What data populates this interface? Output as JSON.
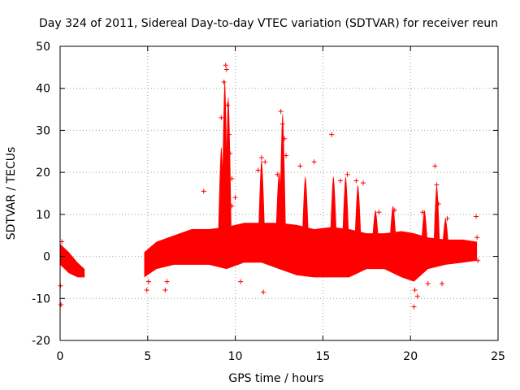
{
  "chart_data": {
    "type": "scatter",
    "title": "Day 324 of 2011, Sidereal Day-to-day VTEC variation (SDTVAR) for receiver reun",
    "xlabel": "GPS time / hours",
    "ylabel": "SDTVAR / TECUs",
    "xlim": [
      0,
      25
    ],
    "ylim": [
      -20,
      50
    ],
    "xticks": [
      0,
      5,
      10,
      15,
      20,
      25
    ],
    "xtick_labels": [
      "0",
      "5",
      "10",
      "15",
      "20",
      "25"
    ],
    "yticks": [
      -20,
      -10,
      0,
      10,
      20,
      30,
      40,
      50
    ],
    "ytick_labels": [
      "-20",
      "-10",
      "0",
      "10",
      "20",
      "30",
      "40",
      "50"
    ],
    "grid": true,
    "marker": "+",
    "series_color": "#ff0000",
    "series": [
      {
        "name": "SDTVAR",
        "envelope_x": [
          0.0,
          0.5,
          1.0,
          1.4,
          4.8,
          5.5,
          6.5,
          7.5,
          8.5,
          9.5,
          10.5,
          11.5,
          12.5,
          13.5,
          14.5,
          15.5,
          16.5,
          17.5,
          18.5,
          19.5,
          20.2,
          21.0,
          22.0,
          23.0,
          23.8
        ],
        "envelope_upper": [
          3.0,
          1.0,
          -1.5,
          -3.0,
          1.0,
          3.5,
          5.0,
          6.5,
          6.5,
          7.0,
          8.0,
          8.0,
          8.0,
          7.5,
          6.5,
          7.0,
          6.5,
          5.5,
          5.5,
          6.0,
          5.5,
          4.5,
          4.0,
          4.0,
          3.5
        ],
        "envelope_lower": [
          -2.0,
          -4.0,
          -5.0,
          -5.0,
          -5.0,
          -3.0,
          -2.0,
          -2.0,
          -2.0,
          -3.0,
          -1.5,
          -1.5,
          -3.0,
          -4.5,
          -5.0,
          -5.0,
          -5.0,
          -3.0,
          -3.0,
          -5.0,
          -6.0,
          -3.0,
          -2.0,
          -1.5,
          -1.0
        ],
        "spikes": [
          {
            "x": 9.2,
            "y": 26
          },
          {
            "x": 9.4,
            "y": 42
          },
          {
            "x": 9.6,
            "y": 38
          },
          {
            "x": 11.5,
            "y": 23
          },
          {
            "x": 12.5,
            "y": 20
          },
          {
            "x": 12.7,
            "y": 34
          },
          {
            "x": 14.0,
            "y": 19
          },
          {
            "x": 15.6,
            "y": 19
          },
          {
            "x": 16.3,
            "y": 19
          },
          {
            "x": 17.0,
            "y": 17
          },
          {
            "x": 18.0,
            "y": 11
          },
          {
            "x": 19.0,
            "y": 12
          },
          {
            "x": 20.8,
            "y": 11
          },
          {
            "x": 21.5,
            "y": 17
          },
          {
            "x": 22.0,
            "y": 9
          }
        ],
        "points": [
          {
            "x": 9.45,
            "y": 45.5
          },
          {
            "x": 9.5,
            "y": 44.5
          },
          {
            "x": 9.35,
            "y": 41.5
          },
          {
            "x": 9.2,
            "y": 33
          },
          {
            "x": 9.55,
            "y": 36
          },
          {
            "x": 9.65,
            "y": 29
          },
          {
            "x": 9.7,
            "y": 24.5
          },
          {
            "x": 9.8,
            "y": 18.5
          },
          {
            "x": 9.8,
            "y": 12.0
          },
          {
            "x": 10.0,
            "y": 14.0
          },
          {
            "x": 8.2,
            "y": 15.5
          },
          {
            "x": 12.6,
            "y": 34.5
          },
          {
            "x": 12.7,
            "y": 31.5
          },
          {
            "x": 12.8,
            "y": 28.0
          },
          {
            "x": 12.9,
            "y": 24.0
          },
          {
            "x": 11.5,
            "y": 23.5
          },
          {
            "x": 11.7,
            "y": 22.5
          },
          {
            "x": 11.3,
            "y": 20.5
          },
          {
            "x": 12.4,
            "y": 19.5
          },
          {
            "x": 13.7,
            "y": 21.5
          },
          {
            "x": 14.5,
            "y": 22.5
          },
          {
            "x": 15.5,
            "y": 29.0
          },
          {
            "x": 16.0,
            "y": 18.0
          },
          {
            "x": 16.4,
            "y": 19.5
          },
          {
            "x": 16.9,
            "y": 18.0
          },
          {
            "x": 17.3,
            "y": 17.5
          },
          {
            "x": 18.2,
            "y": 10.5
          },
          {
            "x": 19.1,
            "y": 11.0
          },
          {
            "x": 20.7,
            "y": 10.5
          },
          {
            "x": 21.4,
            "y": 21.5
          },
          {
            "x": 21.5,
            "y": 17.0
          },
          {
            "x": 21.6,
            "y": 12.5
          },
          {
            "x": 22.1,
            "y": 9.0
          },
          {
            "x": 23.75,
            "y": 9.5
          },
          {
            "x": 0.05,
            "y": -11.5
          },
          {
            "x": 0.1,
            "y": 3.5
          },
          {
            "x": 0.02,
            "y": -7.0
          },
          {
            "x": 4.95,
            "y": -8.0
          },
          {
            "x": 6.0,
            "y": -8.0
          },
          {
            "x": 5.05,
            "y": -6.0
          },
          {
            "x": 6.1,
            "y": -6.0
          },
          {
            "x": 10.3,
            "y": -6.0
          },
          {
            "x": 11.6,
            "y": -8.5
          },
          {
            "x": 20.2,
            "y": -12.0
          },
          {
            "x": 20.4,
            "y": -9.5
          },
          {
            "x": 21.0,
            "y": -6.5
          },
          {
            "x": 21.8,
            "y": -6.5
          },
          {
            "x": 20.25,
            "y": -8.0
          },
          {
            "x": 23.8,
            "y": 4.5
          },
          {
            "x": 23.85,
            "y": -1.0
          }
        ]
      }
    ]
  }
}
